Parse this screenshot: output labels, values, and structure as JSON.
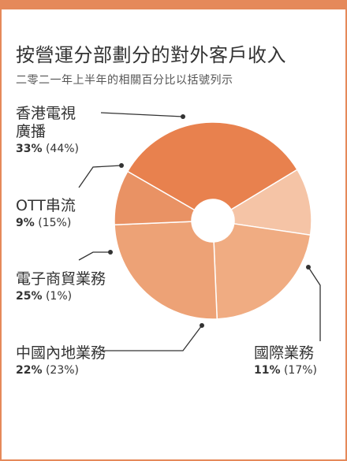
{
  "header": {
    "title": "按營運分部劃分的對外客戶收入",
    "subtitle": "二零二一年上半年的相關百分比以括號列示"
  },
  "colors": {
    "accent": "#e5895a"
  },
  "chart_data": {
    "type": "pie",
    "donut": true,
    "title": "按營運分部劃分的對外客戶收入",
    "subtitle": "二零二一年上半年的相關百分比以括號列示",
    "slices": [
      {
        "name": "香港電視廣播",
        "name_lines": [
          "香港電視",
          "廣播"
        ],
        "value": 33,
        "value_text": "33%",
        "prior_text": "(44%)",
        "color": "#e8814e"
      },
      {
        "name": "國際業務",
        "name_lines": [
          "國際業務"
        ],
        "value": 11,
        "value_text": "11%",
        "prior_text": "(17%)",
        "color": "#f5c4a6"
      },
      {
        "name": "中國內地業務",
        "name_lines": [
          "中國內地業務"
        ],
        "value": 22,
        "value_text": "22%",
        "prior_text": "(23%)",
        "color": "#f0ac82"
      },
      {
        "name": "電子商貿業務",
        "name_lines": [
          "電子商貿業務"
        ],
        "value": 25,
        "value_text": "25%",
        "prior_text": "(1%)",
        "color": "#eda276"
      },
      {
        "name": "OTT串流",
        "name_lines": [
          "OTT串流"
        ],
        "value": 9,
        "value_text": "9%",
        "prior_text": "(15%)",
        "color": "#e99264"
      }
    ]
  }
}
